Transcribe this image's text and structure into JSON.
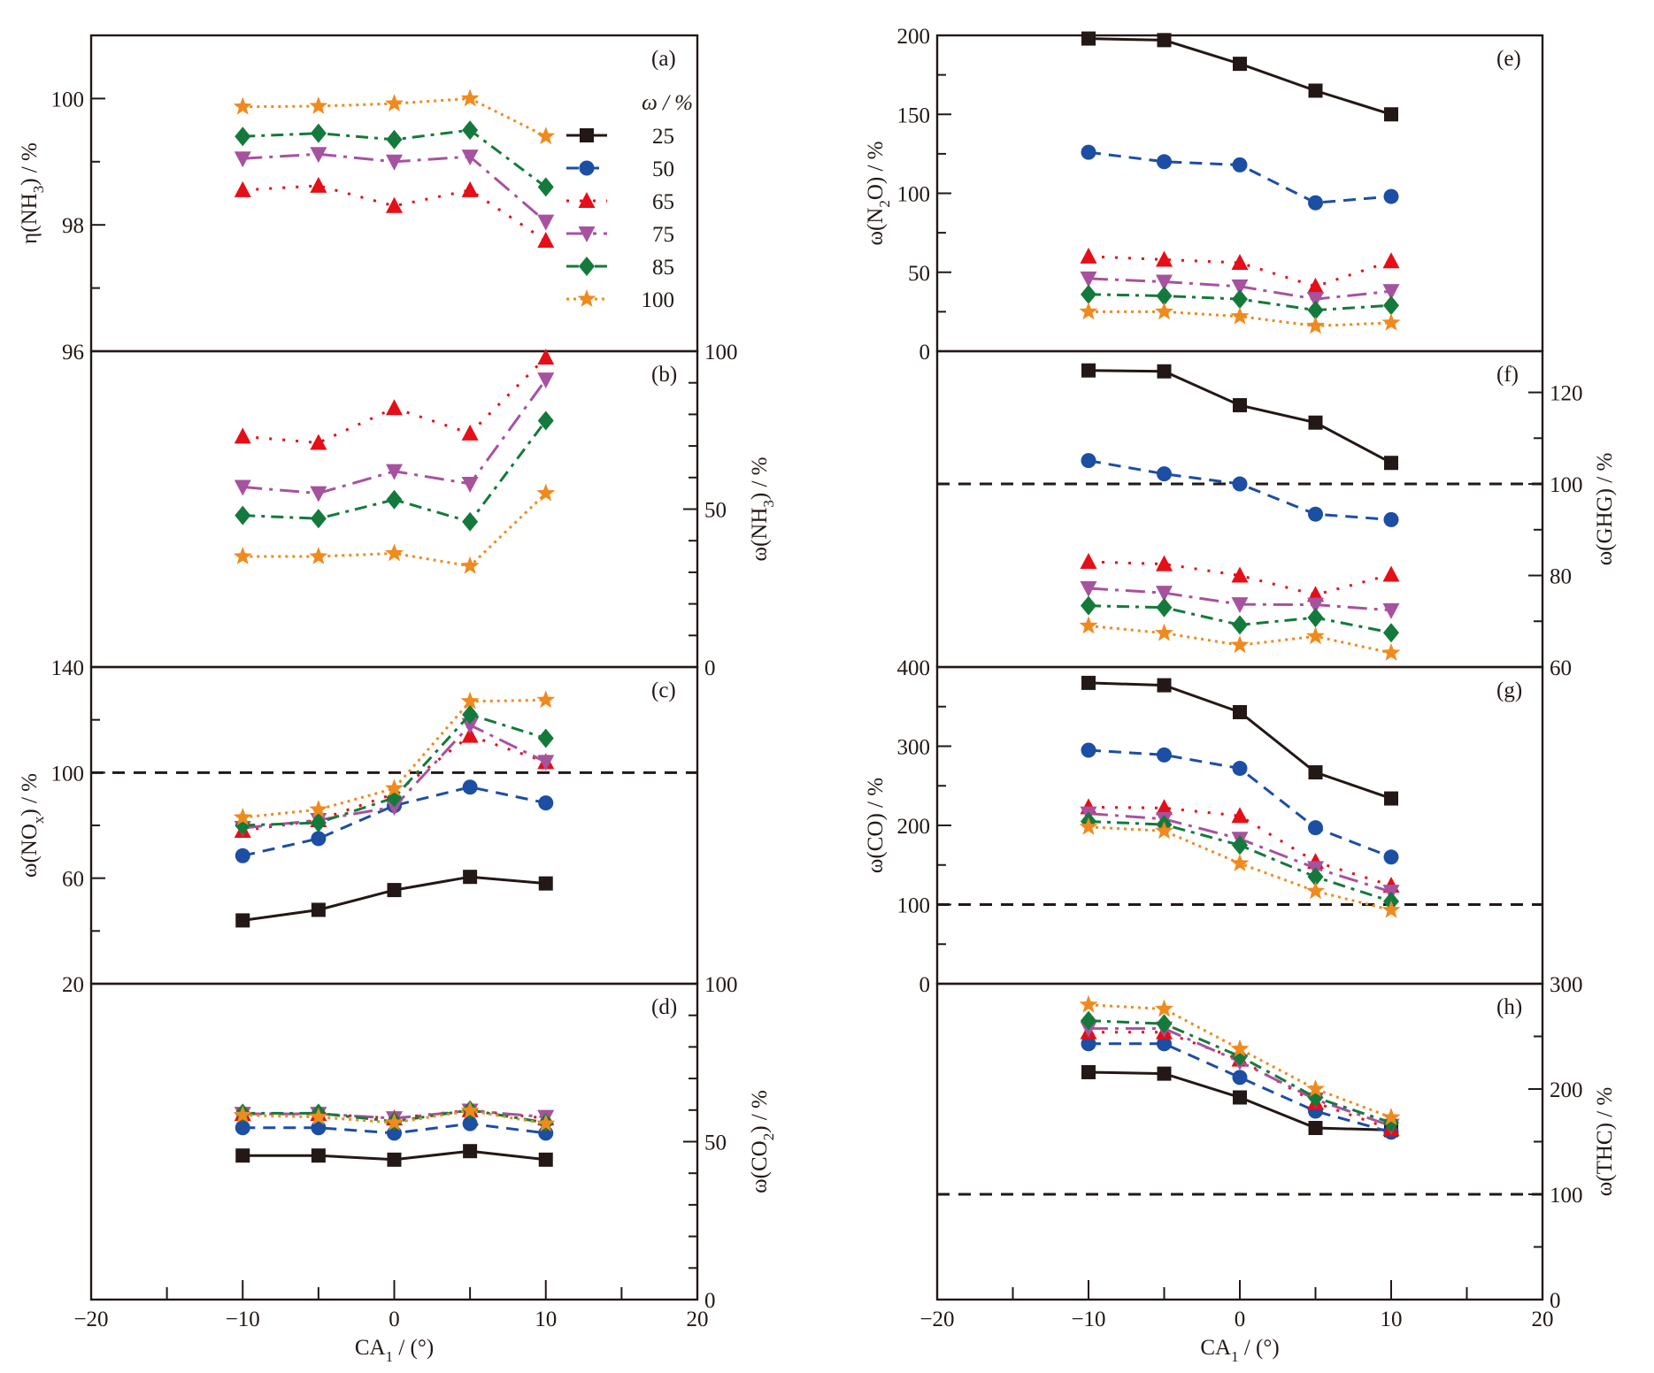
{
  "chart_data": {
    "type": "line",
    "x": [
      -10,
      -5,
      0,
      5,
      10
    ],
    "xlabel": "CA1 / (°)",
    "xlabel_main": "CA",
    "xlabel_sub": "1",
    "xlabel_tail": " / (°)",
    "xlim": [
      -20,
      20
    ],
    "xticks": [
      -20,
      -10,
      0,
      10,
      20
    ],
    "legend": {
      "title": "ω / %",
      "placement": "panel (a) right",
      "entries": [
        "25",
        "50",
        "65",
        "75",
        "85",
        "100"
      ]
    },
    "series_styles": [
      {
        "name": "25",
        "color": "#231815",
        "marker": "square",
        "dash": "solid"
      },
      {
        "name": "50",
        "color": "#1c4ea3",
        "marker": "circle",
        "dash": "dash"
      },
      {
        "name": "65",
        "color": "#e60e17",
        "marker": "triangle-up",
        "dash": "dot"
      },
      {
        "name": "75",
        "color": "#a7529f",
        "marker": "triangle-down",
        "dash": "dashdot-long"
      },
      {
        "name": "85",
        "color": "#147a3c",
        "marker": "diamond",
        "dash": "dashdot"
      },
      {
        "name": "100",
        "color": "#f08a1e",
        "marker": "star",
        "dash": "dense-dot"
      }
    ],
    "panels": [
      {
        "id": "a",
        "label": "(a)",
        "ylabel_pre": "η(NH",
        "ylabel_sub": "3",
        "ylabel_post": ") / %",
        "axis_side": "left",
        "ylim": [
          96,
          101
        ],
        "yticks": [
          96,
          98,
          100
        ],
        "minor_step": 1,
        "show_top_tick_label": false,
        "ref_line": null,
        "series": [
          {
            "name": "65",
            "values": [
              98.55,
              98.62,
              98.3,
              98.55,
              97.75
            ]
          },
          {
            "name": "75",
            "values": [
              99.05,
              99.12,
              99.0,
              99.08,
              98.05
            ]
          },
          {
            "name": "85",
            "values": [
              99.4,
              99.45,
              99.35,
              99.5,
              98.6
            ]
          },
          {
            "name": "100",
            "values": [
              99.87,
              99.88,
              99.92,
              100.0,
              99.4
            ]
          }
        ]
      },
      {
        "id": "b",
        "label": "(b)",
        "ylabel_pre": "ω(NH",
        "ylabel_sub": "3",
        "ylabel_post": ") / %",
        "axis_side": "right",
        "ylim": [
          0,
          100
        ],
        "yticks": [
          0,
          50,
          100
        ],
        "minor_step": 10,
        "ref_line": null,
        "series": [
          {
            "name": "65",
            "values": [
              73,
              71,
              82,
              74,
              98
            ]
          },
          {
            "name": "75",
            "values": [
              57,
              55,
              62,
              58,
              91
            ]
          },
          {
            "name": "85",
            "values": [
              48,
              47,
              53,
              46,
              78
            ]
          },
          {
            "name": "100",
            "values": [
              35,
              35,
              36,
              32,
              55
            ]
          }
        ]
      },
      {
        "id": "c",
        "label": "(c)",
        "ylabel_pre": "ω(NO",
        "ylabel_sub": "x",
        "ylabel_post": ") / %",
        "axis_side": "left",
        "ylim": [
          20,
          140
        ],
        "yticks": [
          20,
          60,
          100,
          140
        ],
        "minor_step": 20,
        "ref_line": 100,
        "series": [
          {
            "name": "25",
            "values": [
              44,
              48,
              55.5,
              60.5,
              58
            ]
          },
          {
            "name": "50",
            "values": [
              68.5,
              75,
              87.5,
              94.5,
              88.5
            ]
          },
          {
            "name": "65",
            "values": [
              78,
              82,
              92,
              114,
              104
            ]
          },
          {
            "name": "75",
            "values": [
              79,
              82,
              87,
              118,
              104
            ]
          },
          {
            "name": "85",
            "values": [
              80,
              81,
              90.5,
              122,
              113
            ]
          },
          {
            "name": "100",
            "values": [
              83,
              86,
              94,
              127,
              127.5
            ]
          }
        ]
      },
      {
        "id": "d",
        "label": "(d)",
        "ylabel_pre": "ω(CO",
        "ylabel_sub": "2",
        "ylabel_post": ") / %",
        "axis_side": "right",
        "ylim": [
          0,
          100
        ],
        "yticks": [
          0,
          50,
          100
        ],
        "minor_step": 10,
        "ref_line": null,
        "series": [
          {
            "name": "25",
            "values": [
              45.6,
              45.6,
              44.3,
              47,
              44.3
            ]
          },
          {
            "name": "50",
            "values": [
              54.4,
              54.4,
              52.7,
              55.7,
              52.7
            ]
          },
          {
            "name": "65",
            "values": [
              58.8,
              58.8,
              57.4,
              60,
              57.4
            ]
          },
          {
            "name": "75",
            "values": [
              58.8,
              58.8,
              57.4,
              59.8,
              57.8
            ]
          },
          {
            "name": "85",
            "values": [
              59,
              59,
              56.4,
              60,
              56
            ]
          },
          {
            "name": "100",
            "values": [
              58.4,
              57.8,
              56,
              59.8,
              55.7
            ]
          }
        ]
      },
      {
        "id": "e",
        "label": "(e)",
        "ylabel_pre": "ω(N",
        "ylabel_sub": "2",
        "ylabel_post": "O) / %",
        "axis_side": "left",
        "ylim": [
          0,
          200
        ],
        "yticks": [
          0,
          50,
          100,
          150,
          200
        ],
        "minor_step": 25,
        "ref_line": null,
        "series": [
          {
            "name": "25",
            "values": [
              198,
              197,
              182,
              165,
              150
            ]
          },
          {
            "name": "50",
            "values": [
              126,
              120,
              118,
              94,
              98
            ]
          },
          {
            "name": "65",
            "values": [
              60,
              58,
              56,
              41,
              57
            ]
          },
          {
            "name": "75",
            "values": [
              46,
              44,
              41,
              33,
              38
            ]
          },
          {
            "name": "85",
            "values": [
              36,
              35,
              33,
              26,
              29
            ]
          },
          {
            "name": "100",
            "values": [
              25,
              25,
              22,
              16,
              18
            ]
          }
        ]
      },
      {
        "id": "f",
        "label": "(f)",
        "ylabel_pre": "ω(GHG",
        "ylabel_sub": "",
        "ylabel_post": ") / %",
        "axis_side": "right",
        "ylim": [
          60,
          129
        ],
        "yticks": [
          60,
          80,
          100,
          120
        ],
        "minor_step": 10,
        "ref_line": 100,
        "series": [
          {
            "name": "25",
            "values": [
              124.8,
              124.6,
              117.2,
              113.4,
              104.6
            ]
          },
          {
            "name": "50",
            "values": [
              105.1,
              102.2,
              100,
              93.4,
              92.2
            ]
          },
          {
            "name": "65",
            "values": [
              83,
              82.5,
              80,
              75.8,
              80.2
            ]
          },
          {
            "name": "75",
            "values": [
              77.2,
              76.2,
              73.7,
              73.6,
              72.4
            ]
          },
          {
            "name": "85",
            "values": [
              73.4,
              73,
              69.2,
              70.8,
              67.5
            ]
          },
          {
            "name": "100",
            "values": [
              69,
              67.4,
              64.8,
              66.7,
              63.1
            ]
          }
        ]
      },
      {
        "id": "g",
        "label": "(g)",
        "ylabel_pre": "ω(CO",
        "ylabel_sub": "",
        "ylabel_post": ") / %",
        "axis_side": "left",
        "ylim": [
          0,
          400
        ],
        "yticks": [
          0,
          100,
          200,
          300,
          400
        ],
        "minor_step": 50,
        "ref_line": 100,
        "series": [
          {
            "name": "25",
            "values": [
              380,
              377,
              343,
              267,
              234
            ]
          },
          {
            "name": "50",
            "values": [
              295,
              289,
              272,
              197,
              160
            ]
          },
          {
            "name": "65",
            "values": [
              223,
              222,
              212,
              154,
              124
            ]
          },
          {
            "name": "75",
            "values": [
              215,
              208,
              183,
              146,
              116
            ]
          },
          {
            "name": "85",
            "values": [
              205,
              201,
              175,
              135,
              104
            ]
          },
          {
            "name": "100",
            "values": [
              198,
              193,
              152,
              117,
              93
            ]
          }
        ]
      },
      {
        "id": "h",
        "label": "(h)",
        "ylabel_pre": "ω(THC",
        "ylabel_sub": "",
        "ylabel_post": ") / %",
        "axis_side": "right",
        "ylim": [
          0,
          300
        ],
        "yticks": [
          0,
          100,
          200,
          300
        ],
        "minor_step": 50,
        "ref_line": 100,
        "series": [
          {
            "name": "25",
            "values": [
              216,
              214.6,
              192,
              163,
              161
            ]
          },
          {
            "name": "50",
            "values": [
              243,
              243,
              211,
              179,
              159
            ]
          },
          {
            "name": "65",
            "values": [
              254,
              254,
              228,
              187,
              162
            ]
          },
          {
            "name": "75",
            "values": [
              257.5,
              257.5,
              226,
              190,
              165
            ]
          },
          {
            "name": "85",
            "values": [
              265,
              262,
              231,
              192,
              168
            ]
          },
          {
            "name": "100",
            "values": [
              280,
              276,
              238,
              200,
              173
            ]
          }
        ]
      }
    ]
  }
}
